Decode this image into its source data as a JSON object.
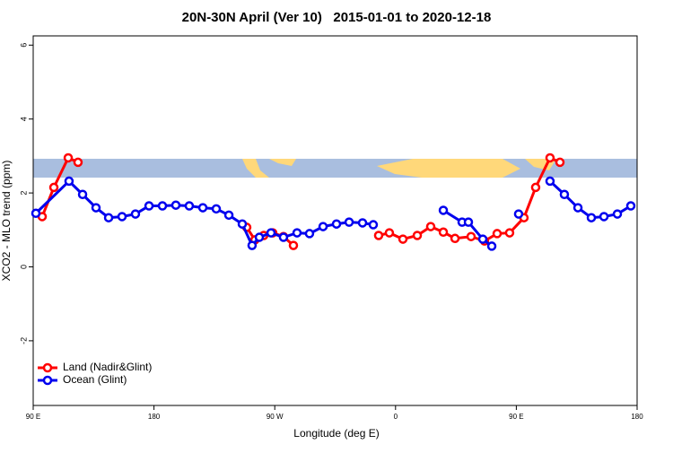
{
  "chart_data": {
    "type": "line",
    "title": "20N-30N April (Ver 10)   2015-01-01 to 2020-12-18",
    "xlabel": "Longitude (deg E)",
    "ylabel": "XCO2 - MLO trend (ppm)",
    "xlim": [
      90,
      540
    ],
    "ylim": [
      -3.75,
      6.25
    ],
    "xticks": [
      {
        "value": 90,
        "label": "90 E"
      },
      {
        "value": 180,
        "label": "180"
      },
      {
        "value": 270,
        "label": "90 W"
      },
      {
        "value": 360,
        "label": "0"
      },
      {
        "value": 450,
        "label": "90 E"
      },
      {
        "value": 540,
        "label": "180"
      }
    ],
    "yticks": [
      -2,
      0,
      2,
      4,
      6
    ],
    "grid": false,
    "legend": "bottom-left",
    "series": [
      {
        "name": "Land (Nadir&Glint)",
        "color": "#ff0000",
        "x": [
          96.7,
          105.4,
          116.1,
          123.4,
          null,
          249.1,
          255.2,
          261.8,
          268.5,
          276.5,
          283.9,
          null,
          347.4,
          355.4,
          365.5,
          376.2,
          386.2,
          395.6,
          404.3,
          416.3,
          426.3,
          435.7,
          445.0,
          455.7,
          464.4,
          475.1,
          482.5
        ],
        "values": [
          1.36,
          2.15,
          2.95,
          2.83,
          null,
          1.07,
          0.73,
          0.85,
          0.92,
          0.82,
          0.58,
          null,
          0.85,
          0.92,
          0.75,
          0.85,
          1.09,
          0.94,
          0.77,
          0.82,
          0.7,
          0.9,
          0.92,
          1.33,
          2.15,
          2.95,
          2.83
        ]
      },
      {
        "name": "Ocean (Glint)",
        "color": "#0000ee",
        "x": [
          92.0,
          116.7,
          126.8,
          136.8,
          146.2,
          156.2,
          166.2,
          176.3,
          186.3,
          196.3,
          206.3,
          216.4,
          226.4,
          235.8,
          245.8,
          253.1,
          258.5,
          267.2,
          276.5,
          286.6,
          295.9,
          306.0,
          316.0,
          325.4,
          335.4,
          343.4,
          null,
          395.6,
          409.6,
          414.3,
          425.0,
          431.7,
          null,
          451.7,
          null,
          475.1,
          485.8,
          495.9,
          505.9,
          515.3,
          525.3,
          535.3
        ],
        "values": [
          1.45,
          2.32,
          1.96,
          1.6,
          1.33,
          1.36,
          1.43,
          1.65,
          1.65,
          1.67,
          1.65,
          1.6,
          1.57,
          1.4,
          1.16,
          0.58,
          0.8,
          0.92,
          0.8,
          0.92,
          0.9,
          1.09,
          1.16,
          1.21,
          1.19,
          1.14,
          null,
          1.53,
          1.21,
          1.21,
          0.75,
          0.56,
          null,
          1.43,
          null,
          2.32,
          1.96,
          1.6,
          1.33,
          1.36,
          1.43,
          1.65
        ]
      }
    ]
  }
}
